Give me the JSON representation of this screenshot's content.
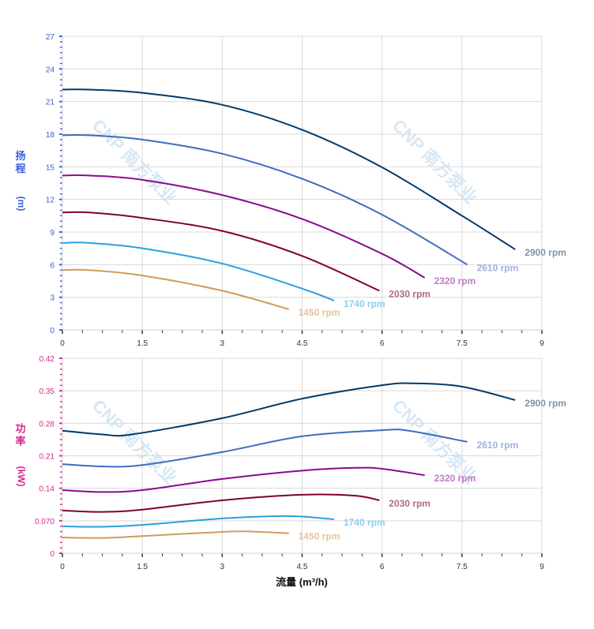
{
  "watermark": "CNP 南方泵业",
  "chart_data": [
    {
      "type": "line",
      "ylabel_chars": [
        "扬",
        "程",
        "(m)"
      ],
      "xlabel": "",
      "xlim": [
        0,
        9
      ],
      "ylim": [
        0,
        27
      ],
      "xticks": [
        "0",
        "1.5",
        "3",
        "4.5",
        "6",
        "7.5",
        "9"
      ],
      "yticks": [
        "0",
        "3",
        "6",
        "9",
        "12",
        "15",
        "18",
        "21",
        "24",
        "27"
      ],
      "axis_color": "#3a5fd9",
      "grid": true,
      "series": [
        {
          "name": "2900 rpm",
          "color": "#003a6a",
          "label_color": "#7f93a8",
          "x": [
            0,
            0.5,
            1.5,
            3,
            4.5,
            6,
            7.5,
            8.5
          ],
          "y": [
            22.1,
            22.1,
            21.8,
            20.7,
            18.4,
            14.95,
            10.5,
            7.4
          ]
        },
        {
          "name": "2610 rpm",
          "color": "#3f6bbf",
          "label_color": "#a0b0dd",
          "x": [
            0,
            0.5,
            1.5,
            3,
            4.5,
            6,
            7.6
          ],
          "y": [
            17.9,
            17.9,
            17.5,
            16.2,
            13.9,
            10.6,
            6.0
          ]
        },
        {
          "name": "2320 rpm",
          "color": "#8a0a8f",
          "label_color": "#c478c4",
          "x": [
            0,
            0.5,
            1.5,
            3,
            4.5,
            6,
            6.8
          ],
          "y": [
            14.2,
            14.2,
            13.8,
            12.4,
            10.2,
            7.0,
            4.8
          ]
        },
        {
          "name": "2030 rpm",
          "color": "#7f0030",
          "label_color": "#b46a85",
          "x": [
            0,
            0.5,
            1.5,
            3,
            4.5,
            5.95
          ],
          "y": [
            10.8,
            10.8,
            10.3,
            9.1,
            6.8,
            3.6
          ]
        },
        {
          "name": "1740 rpm",
          "color": "#2a9fdf",
          "label_color": "#8ccff2",
          "x": [
            0,
            0.5,
            1.5,
            3,
            4.5,
            5.1
          ],
          "y": [
            8.0,
            8.0,
            7.5,
            6.1,
            3.8,
            2.7
          ]
        },
        {
          "name": "1450 rpm",
          "color": "#d19a5a",
          "label_color": "#e8c49a",
          "x": [
            0,
            0.5,
            1.5,
            3,
            4.25
          ],
          "y": [
            5.5,
            5.5,
            5.0,
            3.6,
            1.9
          ]
        }
      ]
    },
    {
      "type": "line",
      "ylabel_chars": [
        "功",
        "率",
        "(kW)"
      ],
      "xlabel": "流量 (m³/h)",
      "xlim": [
        0,
        9
      ],
      "ylim": [
        0,
        0.42
      ],
      "xticks": [
        "0",
        "1.5",
        "3",
        "4.5",
        "6",
        "7.5",
        "9"
      ],
      "yticks": [
        "0",
        "0.070",
        "0.14",
        "0.21",
        "0.28",
        "0.35",
        "0.42"
      ],
      "axis_color": "#d6288f",
      "grid": true,
      "series": [
        {
          "name": "2900 rpm",
          "color": "#003a6a",
          "label_color": "#7f93a8",
          "x": [
            0,
            0.75,
            1.3,
            3,
            4.5,
            6,
            6.6,
            7.5,
            8.5
          ],
          "y": [
            0.264,
            0.256,
            0.256,
            0.291,
            0.333,
            0.362,
            0.366,
            0.359,
            0.33
          ]
        },
        {
          "name": "2610 rpm",
          "color": "#3f6bbf",
          "label_color": "#a0b0dd",
          "x": [
            0,
            0.75,
            1.5,
            3,
            4.5,
            6,
            6.5,
            7.6
          ],
          "y": [
            0.192,
            0.187,
            0.19,
            0.218,
            0.252,
            0.265,
            0.264,
            0.24
          ]
        },
        {
          "name": "2320 rpm",
          "color": "#8a0a8f",
          "label_color": "#c478c4",
          "x": [
            0,
            0.75,
            1.5,
            3,
            4.5,
            5.5,
            6,
            6.8
          ],
          "y": [
            0.136,
            0.132,
            0.136,
            0.16,
            0.178,
            0.184,
            0.182,
            0.168
          ]
        },
        {
          "name": "2030 rpm",
          "color": "#7f0030",
          "label_color": "#b46a85",
          "x": [
            0,
            0.75,
            1.5,
            3,
            4.5,
            5.5,
            5.95
          ],
          "y": [
            0.092,
            0.089,
            0.094,
            0.114,
            0.126,
            0.124,
            0.114
          ]
        },
        {
          "name": "1740 rpm",
          "color": "#2a9fdf",
          "label_color": "#8ccff2",
          "x": [
            0,
            0.75,
            1.5,
            3,
            4.0,
            4.5,
            5.1
          ],
          "y": [
            0.058,
            0.057,
            0.061,
            0.075,
            0.08,
            0.079,
            0.073
          ]
        },
        {
          "name": "1450 rpm",
          "color": "#d19a5a",
          "label_color": "#e8c49a",
          "x": [
            0,
            0.75,
            1.5,
            3,
            3.5,
            4.25
          ],
          "y": [
            0.034,
            0.033,
            0.037,
            0.046,
            0.047,
            0.043
          ]
        }
      ]
    }
  ]
}
